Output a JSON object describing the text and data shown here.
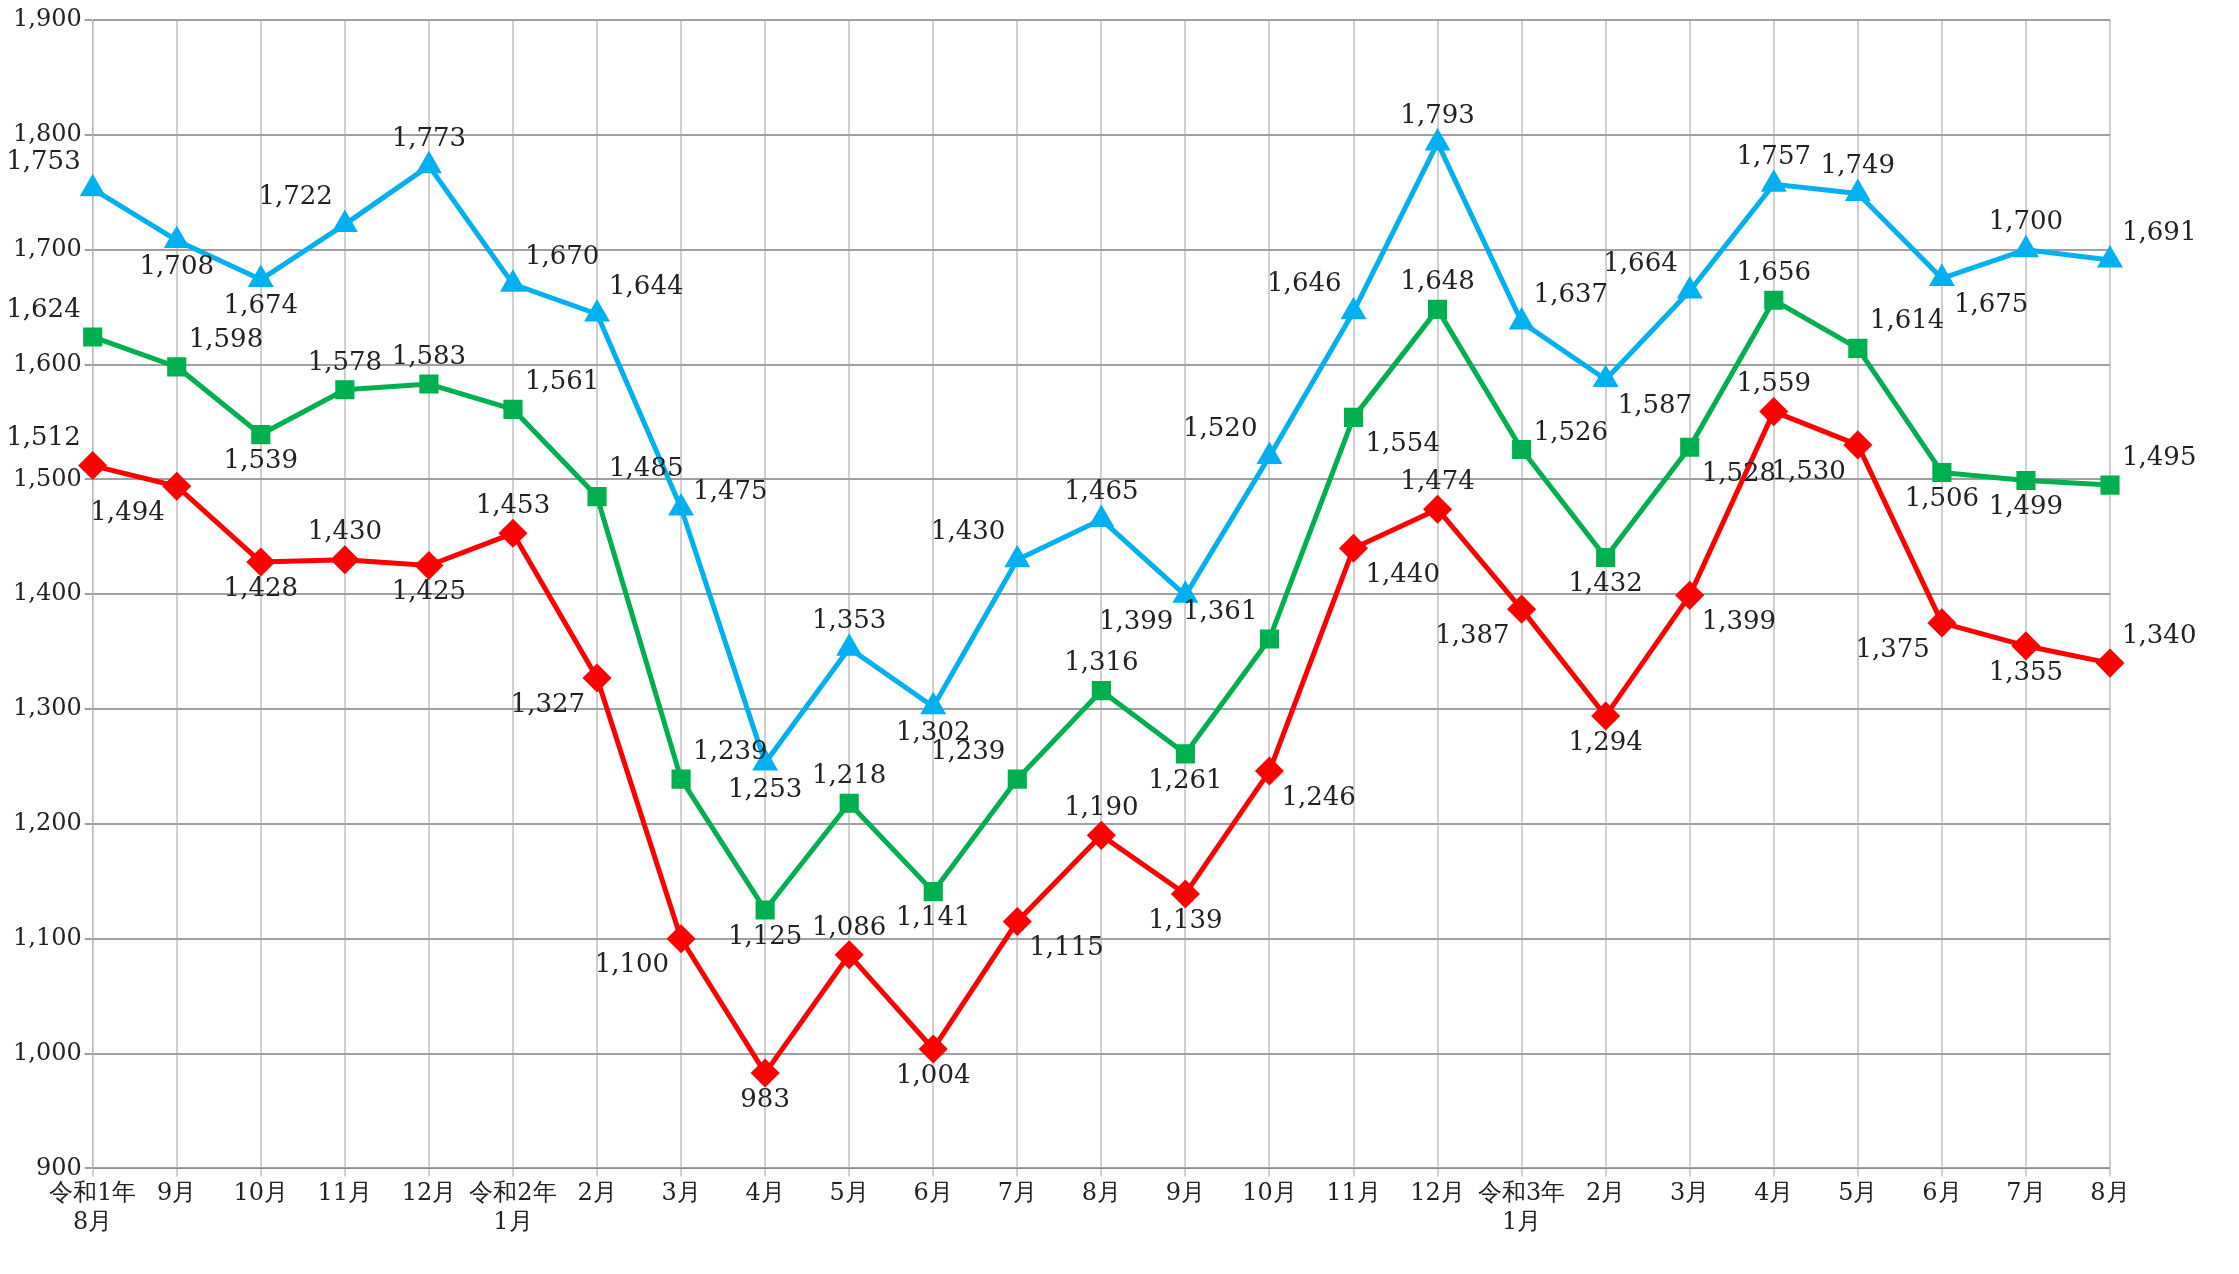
{
  "chart_data": {
    "type": "line",
    "categories": [
      "令和1年\n8月",
      "9月",
      "10月",
      "11月",
      "12月",
      "令和2年\n1月",
      "2月",
      "3月",
      "4月",
      "5月",
      "6月",
      "7月",
      "8月",
      "9月",
      "10月",
      "11月",
      "12月",
      "令和3年\n1月",
      "2月",
      "3月",
      "4月",
      "5月",
      "6月",
      "7月",
      "8月"
    ],
    "series": [
      {
        "color": "#00b0f0",
        "marker": "triangle",
        "values": [
          1753,
          1708,
          1674,
          1722,
          1773,
          1670,
          1644,
          1475,
          1253,
          1353,
          1302,
          1430,
          1465,
          1399,
          1520,
          1646,
          1793,
          1637,
          1587,
          1664,
          1757,
          1749,
          1675,
          1700,
          1691
        ],
        "value_labels": [
          "1,753",
          "1,708",
          "1,674",
          "1,722",
          "1,773",
          "1,670",
          "1,644",
          "1,475",
          "1,253",
          "1,353",
          "1,302",
          "1,430",
          "1,465",
          "1,399",
          "1,520",
          "1,646",
          "1,793",
          "1,637",
          "1,587",
          "1,664",
          "1,757",
          "1,749",
          "1,675",
          "1,700",
          "1,691"
        ]
      },
      {
        "color": "#00b050",
        "marker": "square",
        "values": [
          1624,
          1598,
          1539,
          1578,
          1583,
          1561,
          1485,
          1239,
          1125,
          1218,
          1141,
          1239,
          1316,
          1261,
          1361,
          1554,
          1648,
          1526,
          1432,
          1528,
          1656,
          1614,
          1506,
          1499,
          1495
        ],
        "value_labels": [
          "1,624",
          "1,598",
          "1,539",
          "1,578",
          "1,583",
          "1,561",
          "1,485",
          "1,239",
          "1,125",
          "1,218",
          "1,141",
          "1,239",
          "1,316",
          "1,261",
          "1,361",
          "1,554",
          "1,648",
          "1,526",
          "1,432",
          "1,528",
          "1,656",
          "1,614",
          "1,506",
          "1,499",
          "1,495"
        ]
      },
      {
        "color": "#ff0000",
        "marker": "diamond",
        "values": [
          1512,
          1494,
          1428,
          1430,
          1425,
          1453,
          1327,
          1100,
          983,
          1086,
          1004,
          1115,
          1190,
          1139,
          1246,
          1440,
          1474,
          1387,
          1294,
          1399,
          1559,
          1530,
          1375,
          1355,
          1340
        ],
        "value_labels": [
          "1,512",
          "1,494",
          "1,428",
          "1,430",
          "1,425",
          "1,453",
          "1,327",
          "1,100",
          "983",
          "1,086",
          "1,004",
          "1,115",
          "1,190",
          "1,139",
          "1,246",
          "1,440",
          "1,474",
          "1,387",
          "1,294",
          "1,399",
          "1,559",
          "1,530",
          "1,375",
          "1,355",
          "1,340"
        ]
      }
    ],
    "ylim": [
      900,
      1900
    ],
    "yticks": [
      900,
      {
        "value": 1000,
        "label": "1,000"
      },
      {
        "value": 1100,
        "label": "1,100"
      },
      {
        "value": 1200,
        "label": "1,200"
      },
      {
        "value": 1300,
        "label": "1,300"
      },
      {
        "value": 1400,
        "label": "1,400"
      },
      {
        "value": 1500,
        "label": "1,500"
      },
      {
        "value": 1600,
        "label": "1,600"
      },
      {
        "value": 1700,
        "label": "1,700"
      },
      {
        "value": 1800,
        "label": "1,800"
      },
      {
        "value": 1900,
        "label": "1,900"
      }
    ],
    "grid": true,
    "legend": false,
    "line_style": "solid"
  }
}
